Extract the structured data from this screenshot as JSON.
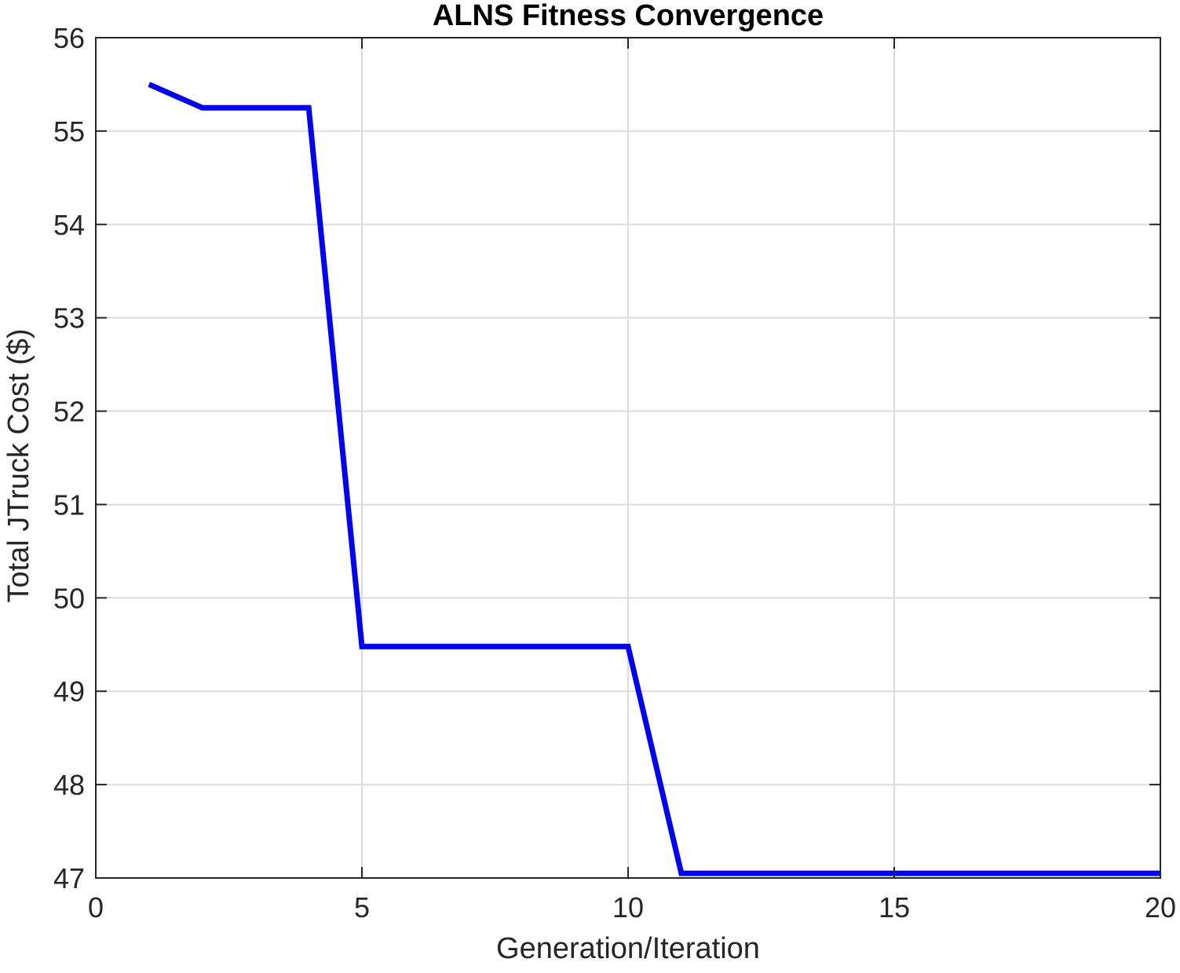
{
  "chart_data": {
    "type": "line",
    "title": "ALNS Fitness Convergence",
    "xlabel": "Generation/Iteration",
    "ylabel": "Total JTruck Cost ($)",
    "xlim": [
      0,
      20
    ],
    "ylim": [
      47,
      56
    ],
    "xticks": [
      0,
      5,
      10,
      15,
      20
    ],
    "yticks": [
      47,
      48,
      49,
      50,
      51,
      52,
      53,
      54,
      55,
      56
    ],
    "grid": true,
    "legend": false,
    "series": [
      {
        "color": "#0000ff",
        "x": [
          1,
          2,
          3,
          4,
          5,
          6,
          7,
          8,
          9,
          10,
          11,
          12,
          13,
          14,
          15,
          16,
          17,
          18,
          19,
          20
        ],
        "y": [
          55.5,
          55.25,
          55.25,
          55.25,
          49.48,
          49.48,
          49.48,
          49.48,
          49.48,
          49.48,
          47.05,
          47.05,
          47.05,
          47.05,
          47.05,
          47.05,
          47.05,
          47.05,
          47.05,
          47.05
        ]
      }
    ]
  }
}
